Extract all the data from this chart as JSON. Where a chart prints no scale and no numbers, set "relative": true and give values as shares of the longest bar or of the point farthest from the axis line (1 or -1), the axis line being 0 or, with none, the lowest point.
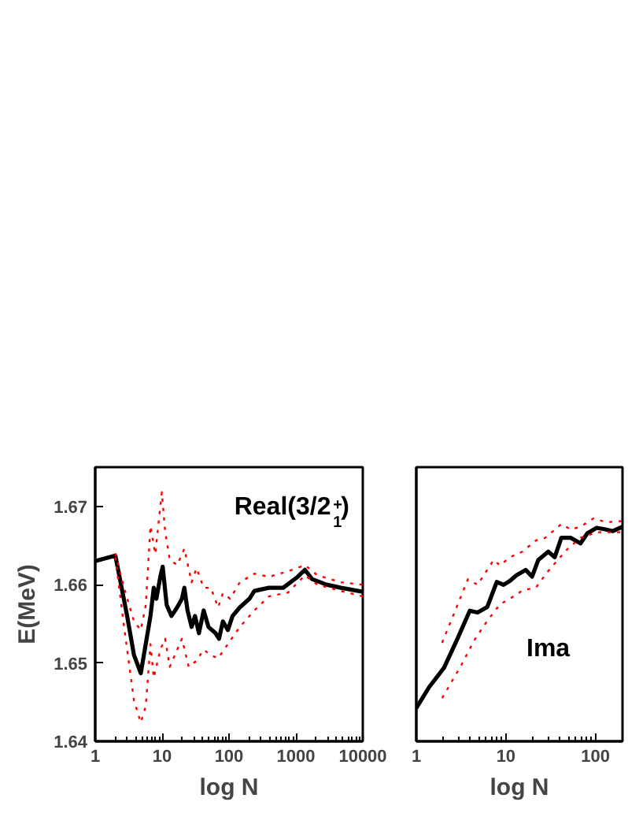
{
  "chart_data": [
    {
      "type": "line",
      "xlabel": "log N",
      "ylabel": "E(MeV)",
      "annotations": [
        "Real(3/2$^{+}$$_{1}$)"
      ],
      "log": "x",
      "grid": false,
      "xlim": [
        1,
        10000
      ],
      "xticks": [
        1,
        10,
        100,
        1000,
        10000
      ],
      "ylim": [
        1.64,
        1.675
      ],
      "yticks": [
        1.64,
        1.65,
        1.66,
        1.67
      ],
      "series": [
        {
          "color": "#000000",
          "line_style": "solid",
          "x": [
            1,
            2,
            3,
            3.8,
            4.8,
            6.7,
            7.5,
            8.2,
            9.4,
            10.2,
            11.7,
            13.8,
            16.8,
            19.8,
            21.5,
            24,
            27.6,
            31,
            35.5,
            41.8,
            49.3,
            63,
            71,
            81,
            96,
            113,
            145,
            202,
            239,
            394,
            646,
            1063,
            1363,
            1747,
            2870,
            4710,
            10000
          ],
          "values": [
            1.663,
            1.6637,
            1.656,
            1.651,
            1.6487,
            1.656,
            1.6596,
            1.6582,
            1.661,
            1.6623,
            1.6574,
            1.656,
            1.6571,
            1.6582,
            1.6596,
            1.6567,
            1.6546,
            1.656,
            1.6538,
            1.6567,
            1.6546,
            1.6538,
            1.6531,
            1.6553,
            1.6542,
            1.656,
            1.6571,
            1.6582,
            1.6592,
            1.6596,
            1.6596,
            1.661,
            1.6619,
            1.6607,
            1.66,
            1.6596,
            1.6591
          ]
        },
        {
          "color": "#ff0000",
          "line_style": "dotted",
          "x": [
            2,
            2.7,
            3.8,
            4.8,
            5.7,
            6.7,
            7.9,
            9.9,
            11.1,
            13,
            16.8,
            21.5,
            27.6,
            32.7,
            41.8,
            53.5,
            68.7,
            81,
            104,
            145,
            239,
            394,
            764,
            1363,
            2090,
            4710,
            10000
          ],
          "values": [
            1.664,
            1.6596,
            1.6553,
            1.6542,
            1.6574,
            1.6675,
            1.6639,
            1.6718,
            1.6668,
            1.6632,
            1.6625,
            1.6646,
            1.6603,
            1.6621,
            1.6596,
            1.6596,
            1.6571,
            1.6589,
            1.6582,
            1.6603,
            1.6614,
            1.661,
            1.6617,
            1.6625,
            1.6612,
            1.6603,
            1.66
          ]
        },
        {
          "color": "#ff0000",
          "line_style": "dotted",
          "x": [
            2,
            2.7,
            3.8,
            4.8,
            5.7,
            6.7,
            7.5,
            9.4,
            11.1,
            13,
            16.8,
            19.8,
            25,
            32.7,
            41.8,
            53.5,
            68.7,
            96,
            145,
            239,
            394,
            764,
            1363,
            2090,
            4710,
            10000
          ],
          "values": [
            1.6635,
            1.6546,
            1.6452,
            1.6424,
            1.6445,
            1.6524,
            1.6481,
            1.6517,
            1.6531,
            1.6495,
            1.6517,
            1.6531,
            1.6495,
            1.6503,
            1.6517,
            1.651,
            1.6506,
            1.6524,
            1.6546,
            1.6567,
            1.6585,
            1.659,
            1.6612,
            1.66,
            1.6592,
            1.6585
          ]
        }
      ]
    },
    {
      "type": "line",
      "xlabel": "log N",
      "annotations": [
        "Ima"
      ],
      "log": "x",
      "grid": false,
      "relative": true,
      "xlim": [
        1,
        200
      ],
      "xticks": [
        1,
        10,
        100
      ],
      "series": [
        {
          "color": "#000000",
          "line_style": "solid",
          "x": [
            1,
            1.39,
            2.04,
            2.93,
            3.95,
            4.83,
            6.2,
            7.9,
            9.4,
            11.1,
            13,
            16.6,
            19.6,
            23,
            29.7,
            35,
            41.6,
            53,
            68,
            81,
            103,
            132,
            156,
            200
          ],
          "values": [
            0.149,
            0.243,
            0.33,
            0.467,
            0.586,
            0.578,
            0.603,
            0.715,
            0.702,
            0.72,
            0.744,
            0.769,
            0.739,
            0.814,
            0.851,
            0.826,
            0.913,
            0.913,
            0.888,
            0.933,
            0.958,
            0.95,
            0.943,
            0.963
          ]
        },
        {
          "color": "#ff0000",
          "line_style": "dotted",
          "x": [
            1.94,
            3.77,
            4.83,
            7.3,
            8.6,
            11.1,
            15.3,
            21.6,
            27.5,
            41.6,
            53,
            68,
            95,
            132,
            200
          ],
          "values": [
            0.442,
            0.727,
            0.702,
            0.814,
            0.789,
            0.826,
            0.851,
            0.901,
            0.913,
            0.975,
            0.95,
            0.963,
            1.0,
            0.983,
            0.988
          ]
        },
        {
          "color": "#ff0000",
          "line_style": "dotted",
          "x": [
            1.94,
            3.18,
            4.44,
            6.2,
            8.6,
            11.1,
            15.3,
            21.6,
            29.7,
            38,
            49,
            68,
            103,
            200
          ],
          "values": [
            0.194,
            0.342,
            0.454,
            0.541,
            0.615,
            0.64,
            0.677,
            0.69,
            0.764,
            0.814,
            0.864,
            0.913,
            0.938,
            0.938
          ]
        }
      ]
    }
  ]
}
